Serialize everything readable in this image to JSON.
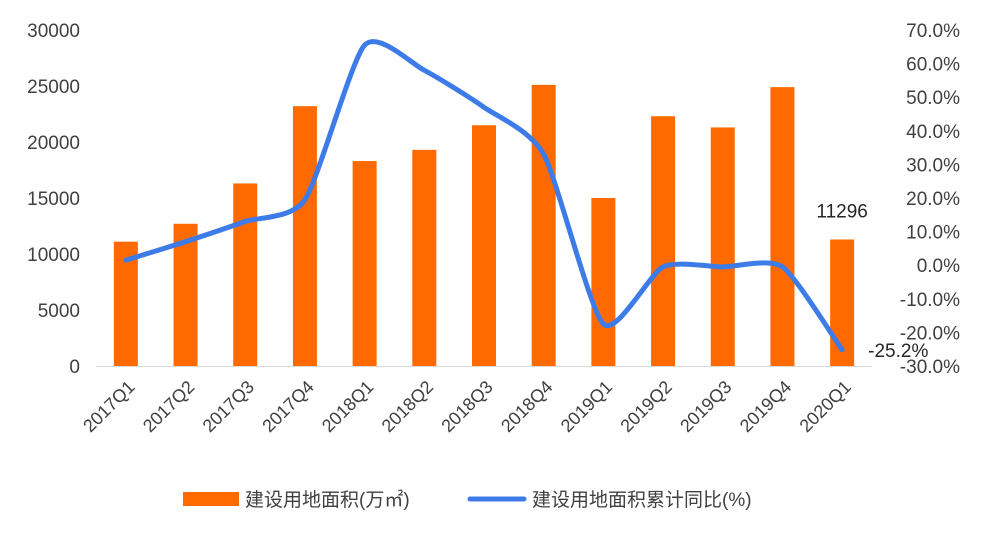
{
  "chart_data": {
    "type": "bar+line",
    "categories": [
      "2017Q1",
      "2017Q2",
      "2017Q3",
      "2017Q4",
      "2018Q1",
      "2018Q2",
      "2018Q3",
      "2018Q4",
      "2019Q1",
      "2019Q2",
      "2019Q3",
      "2019Q4",
      "2020Q1"
    ],
    "series": [
      {
        "name": "建设用地面积(万㎡)",
        "type": "bar",
        "axis": "left",
        "color": "#FF6A00",
        "values": [
          11100,
          12700,
          16300,
          23200,
          18300,
          19300,
          21500,
          25100,
          15000,
          22300,
          21300,
          24900,
          11296
        ]
      },
      {
        "name": "建设用地面积累计同比(%)",
        "type": "line",
        "axis": "right",
        "color": "#3D7BE8",
        "values": [
          1.5,
          7.0,
          13.0,
          19.5,
          65.5,
          58.0,
          47.0,
          33.0,
          -17.5,
          -0.5,
          -0.5,
          -0.5,
          -25.2
        ]
      }
    ],
    "y_left": {
      "min": 0,
      "max": 30000,
      "ticks": [
        "0",
        "5000",
        "10000",
        "15000",
        "20000",
        "25000",
        "30000"
      ]
    },
    "y_right": {
      "min": -30,
      "max": 70,
      "ticks": [
        "-30.0%",
        "-20.0%",
        "-10.0%",
        "0.0%",
        "10.0%",
        "20.0%",
        "30.0%",
        "40.0%",
        "50.0%",
        "60.0%",
        "70.0%"
      ]
    },
    "data_labels": [
      {
        "series": 0,
        "index": 12,
        "text": "11296"
      },
      {
        "series": 1,
        "index": 12,
        "text": "-25.2%"
      }
    ],
    "legend_position": "bottom",
    "grid": false
  }
}
